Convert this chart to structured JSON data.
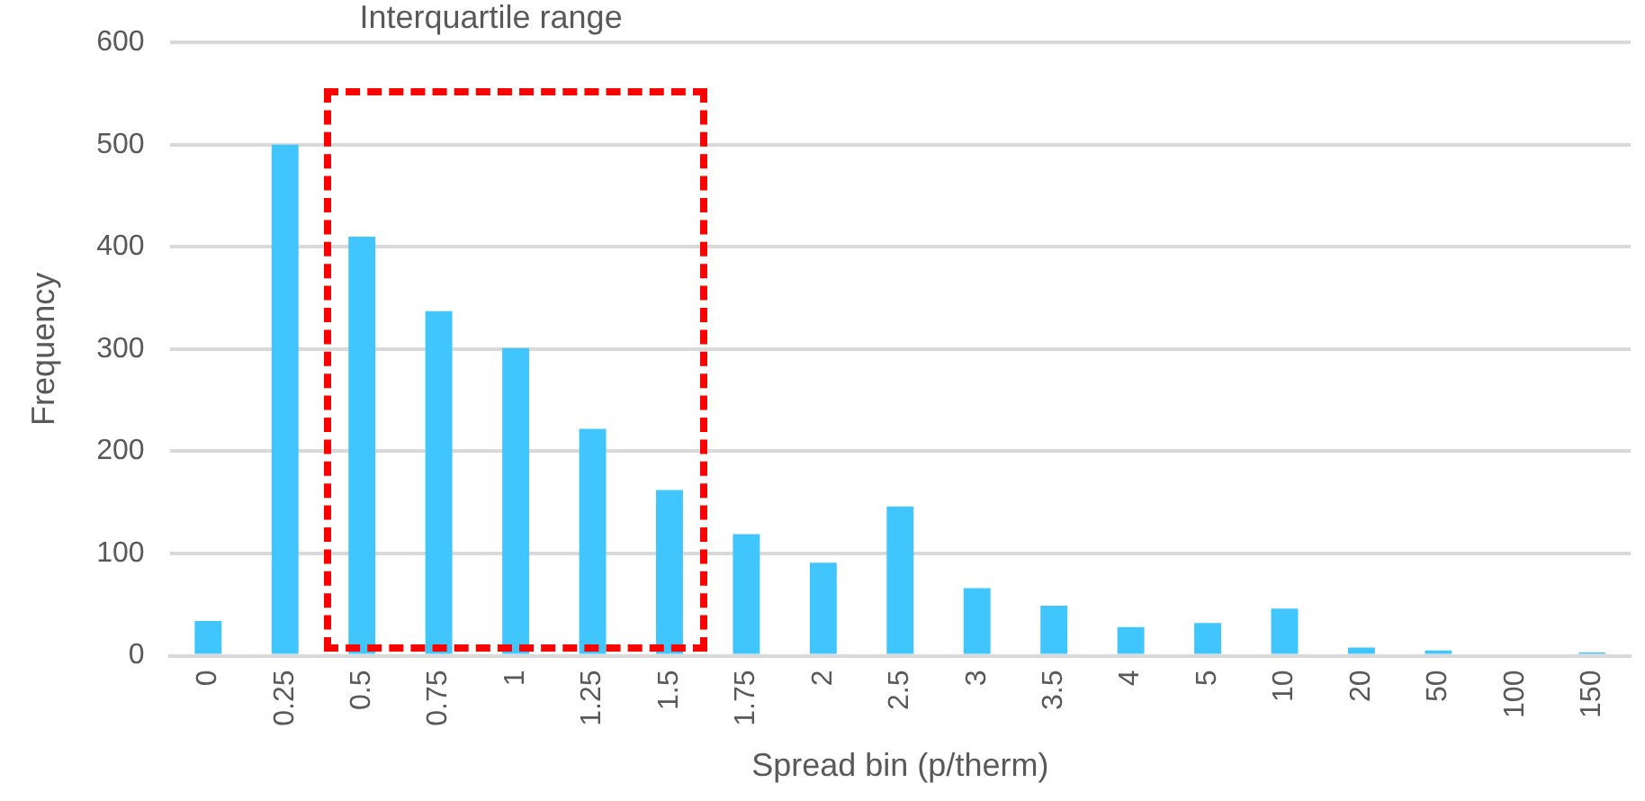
{
  "chart_data": {
    "type": "bar",
    "xlabel": "Spread bin (p/therm)",
    "ylabel": "Frequency",
    "categories": [
      "0",
      "0.25",
      "0.5",
      "0.75",
      "1",
      "1.25",
      "1.5",
      "1.75",
      "2",
      "2.5",
      "3",
      "3.5",
      "4",
      "5",
      "10",
      "20",
      "50",
      "100",
      "150"
    ],
    "values": [
      34,
      500,
      410,
      337,
      301,
      222,
      162,
      119,
      91,
      146,
      66,
      49,
      28,
      32,
      46,
      8,
      5,
      0,
      3
    ],
    "color": "#41c5fd",
    "ylim": [
      0,
      600
    ],
    "yticks": [
      0,
      100,
      200,
      300,
      400,
      500,
      600
    ],
    "grid": "y",
    "legend": false,
    "annotations": [
      "Interquartile range"
    ]
  }
}
